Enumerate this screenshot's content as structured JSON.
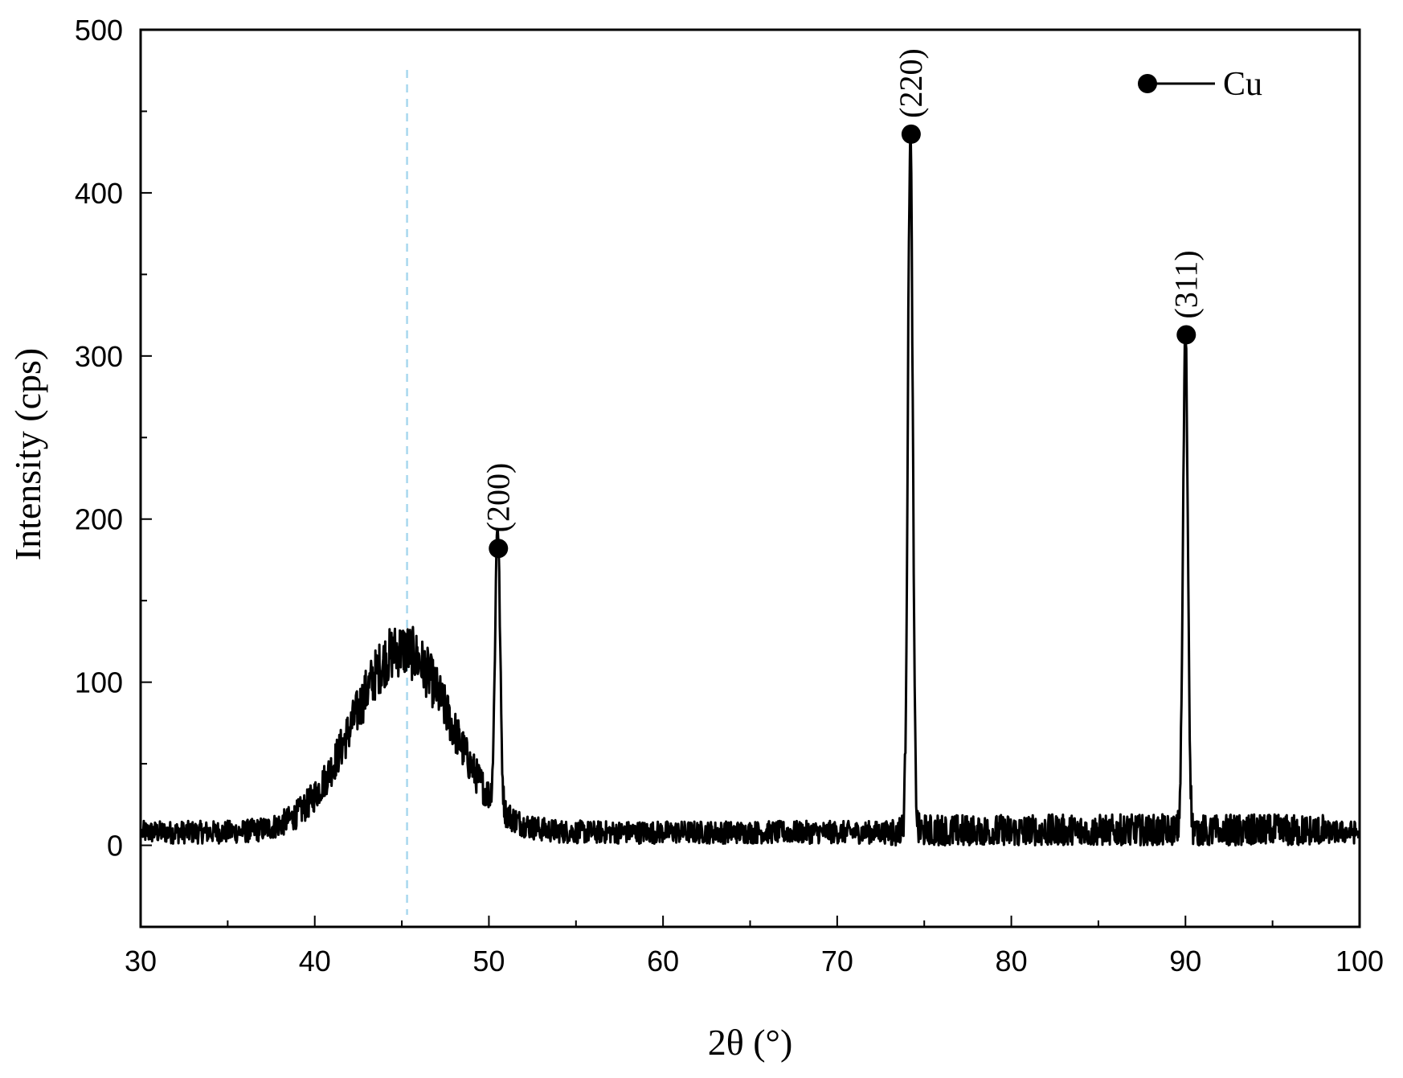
{
  "chart_data": {
    "type": "line",
    "xlabel": "2θ (°)",
    "ylabel": "Intensity (cps)",
    "xlim": [
      30,
      100
    ],
    "ylim": [
      -50,
      500
    ],
    "xticks": [
      30,
      40,
      50,
      60,
      70,
      80,
      90,
      100
    ],
    "yticks": [
      0,
      100,
      200,
      300,
      400,
      500
    ],
    "grid": false,
    "legend": {
      "placement": "top-right",
      "entries": [
        {
          "name": "Cu",
          "marker": "filled-circle"
        }
      ]
    },
    "reference_line": {
      "x": 45.3,
      "style": "dashed",
      "color": "#a8d8ee"
    },
    "baseline": 8,
    "broad_hump": {
      "center": 45.0,
      "height": 112,
      "width": 2.8
    },
    "series": [
      {
        "name": "Cu",
        "color": "#000000",
        "peaks": [
          {
            "x": 50.5,
            "y": 182,
            "label": "(200)"
          },
          {
            "x": 74.2,
            "y": 436,
            "label": "(220)"
          },
          {
            "x": 90.0,
            "y": 313,
            "label": "(311)"
          }
        ]
      }
    ]
  }
}
